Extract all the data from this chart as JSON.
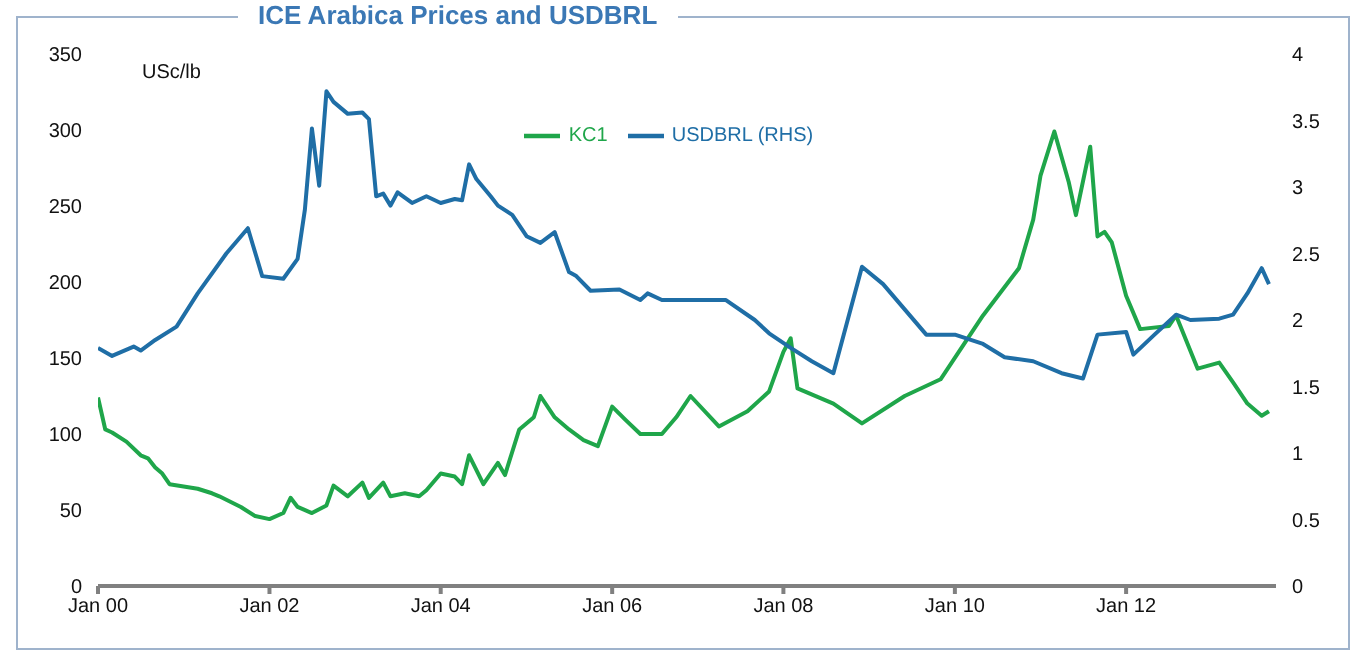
{
  "chart_data": {
    "type": "line",
    "title": "ICE Arabica Prices and USDBRL",
    "ylabel": "USc/lb",
    "xlim": [
      "2000-01",
      "2013-10"
    ],
    "xticks": [
      {
        "value": "2000-01",
        "label": "Jan 00"
      },
      {
        "value": "2002-01",
        "label": "Jan 02"
      },
      {
        "value": "2004-01",
        "label": "Jan 04"
      },
      {
        "value": "2006-01",
        "label": "Jan 06"
      },
      {
        "value": "2008-01",
        "label": "Jan 08"
      },
      {
        "value": "2010-01",
        "label": "Jan 10"
      },
      {
        "value": "2012-01",
        "label": "Jan 12"
      }
    ],
    "ylim": [
      0,
      350
    ],
    "yticks": [
      0,
      50,
      100,
      150,
      200,
      250,
      300,
      350
    ],
    "y2lim": [
      0,
      4
    ],
    "y2ticks": [
      0,
      0.5,
      1,
      1.5,
      2,
      2.5,
      3,
      3.5,
      4
    ],
    "legend": "top",
    "marker": "none",
    "line_style": "solid",
    "series": [
      {
        "name": "KC1",
        "color": "#1fa64a",
        "x": [
          "2000-01",
          "2000-02",
          "2000-03",
          "2000-05",
          "2000-07",
          "2000-08",
          "2000-09",
          "2000-10",
          "2000-11",
          "2001-03",
          "2001-05",
          "2001-06",
          "2001-09",
          "2001-11",
          "2002-01",
          "2002-03",
          "2002-04",
          "2002-05",
          "2002-07",
          "2002-09",
          "2002-10",
          "2002-12",
          "2003-02",
          "2003-03",
          "2003-05",
          "2003-06",
          "2003-08",
          "2003-10",
          "2003-11",
          "2004-01",
          "2004-03",
          "2004-04",
          "2004-05",
          "2004-07",
          "2004-09",
          "2004-10",
          "2004-12",
          "2005-02",
          "2005-03",
          "2005-05",
          "2005-07",
          "2005-09",
          "2005-11",
          "2006-01",
          "2006-03",
          "2006-05",
          "2006-08",
          "2006-10",
          "2006-12",
          "2007-04",
          "2007-08",
          "2007-11",
          "2008-01",
          "2008-02",
          "2008-03",
          "2008-08",
          "2008-12",
          "2009-06",
          "2009-11",
          "2010-05",
          "2010-10",
          "2010-12",
          "2011-01",
          "2011-03",
          "2011-05",
          "2011-06",
          "2011-08",
          "2011-09",
          "2011-10",
          "2011-11",
          "2012-01",
          "2012-03",
          "2012-07",
          "2012-08",
          "2012-11",
          "2013-02",
          "2013-04",
          "2013-06",
          "2013-08",
          "2013-09"
        ],
        "values": [
          124,
          103,
          101,
          95,
          86,
          84,
          78,
          74,
          67,
          64,
          61,
          59,
          52,
          46,
          44,
          48,
          58,
          52,
          48,
          53,
          66,
          59,
          68,
          58,
          68,
          59,
          61,
          59,
          63,
          74,
          72,
          67,
          86,
          67,
          81,
          73,
          103,
          111,
          125,
          111,
          103,
          96,
          92,
          118,
          109,
          100,
          100,
          111,
          125,
          105,
          115,
          128,
          154,
          163,
          130,
          120,
          107,
          125,
          136,
          178,
          209,
          241,
          270,
          299,
          266,
          244,
          289,
          230,
          233,
          226,
          191,
          169,
          171,
          178,
          143,
          147,
          134,
          120,
          112,
          115
        ]
      },
      {
        "name": "USDBRL (RHS)",
        "color": "#1f6ea6",
        "axis": "y2",
        "x": [
          "2000-01",
          "2000-03",
          "2000-06",
          "2000-07",
          "2000-09",
          "2000-12",
          "2001-03",
          "2001-07",
          "2001-10",
          "2001-12",
          "2002-03",
          "2002-05",
          "2002-06",
          "2002-07",
          "2002-08",
          "2002-09",
          "2002-10",
          "2002-12",
          "2003-02",
          "2003-03",
          "2003-04",
          "2003-05",
          "2003-06",
          "2003-07",
          "2003-09",
          "2003-11",
          "2004-01",
          "2004-03",
          "2004-04",
          "2004-05",
          "2004-06",
          "2004-08",
          "2004-09",
          "2004-11",
          "2005-01",
          "2005-03",
          "2005-05",
          "2005-07",
          "2005-08",
          "2005-10",
          "2006-02",
          "2006-05",
          "2006-06",
          "2006-08",
          "2007-05",
          "2007-09",
          "2007-11",
          "2008-02",
          "2008-05",
          "2008-08",
          "2008-12",
          "2009-03",
          "2009-09",
          "2010-01",
          "2010-05",
          "2010-08",
          "2010-12",
          "2011-04",
          "2011-07",
          "2011-09",
          "2012-01",
          "2012-02",
          "2012-05",
          "2012-08",
          "2012-10",
          "2013-02",
          "2013-04",
          "2013-06",
          "2013-08",
          "2013-09"
        ],
        "values": [
          1.79,
          1.73,
          1.8,
          1.77,
          1.85,
          1.95,
          2.2,
          2.5,
          2.69,
          2.33,
          2.31,
          2.46,
          2.83,
          3.44,
          3.01,
          3.72,
          3.64,
          3.55,
          3.56,
          3.51,
          2.93,
          2.95,
          2.86,
          2.96,
          2.88,
          2.93,
          2.88,
          2.91,
          2.9,
          3.17,
          3.06,
          2.93,
          2.86,
          2.79,
          2.63,
          2.58,
          2.66,
          2.36,
          2.33,
          2.22,
          2.23,
          2.15,
          2.2,
          2.15,
          2.15,
          2.0,
          1.9,
          1.79,
          1.69,
          1.6,
          2.4,
          2.27,
          1.89,
          1.89,
          1.82,
          1.72,
          1.69,
          1.6,
          1.56,
          1.89,
          1.91,
          1.74,
          1.89,
          2.04,
          2.0,
          2.01,
          2.04,
          2.2,
          2.39,
          2.27
        ]
      }
    ]
  }
}
